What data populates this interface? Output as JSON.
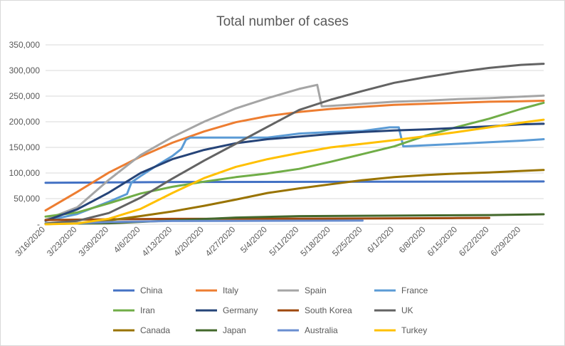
{
  "chart_data": {
    "type": "line",
    "title": "Total number of cases",
    "xlabel": "",
    "ylabel": "",
    "ylim": [
      0,
      350000
    ],
    "y_ticks": [
      "-",
      "50,000",
      "100,000",
      "150,000",
      "200,000",
      "250,000",
      "300,000",
      "350,000"
    ],
    "x_ticks": [
      "3/16/2020",
      "3/23/2020",
      "3/30/2020",
      "4/6/2020",
      "4/13/2020",
      "4/20/2020",
      "4/27/2020",
      "5/4/2020",
      "5/11/2020",
      "5/18/2020",
      "5/25/2020",
      "6/1/2020",
      "6/8/2020",
      "6/15/2020",
      "6/22/2020",
      "6/29/2020"
    ],
    "x_start": "3/16/2020",
    "x_end": "7/4/2020",
    "grid": "horizontal",
    "legend_position": "bottom",
    "series": [
      {
        "name": "China",
        "color": "#4472C4",
        "width": 3,
        "points": [
          [
            "3/16/2020",
            81000
          ],
          [
            "4/17/2020",
            82500
          ],
          [
            "7/4/2020",
            83500
          ]
        ]
      },
      {
        "name": "Italy",
        "color": "#ED7D31",
        "width": 3,
        "points": [
          [
            "3/16/2020",
            27000
          ],
          [
            "3/23/2020",
            63000
          ],
          [
            "3/30/2020",
            101000
          ],
          [
            "4/6/2020",
            132000
          ],
          [
            "4/13/2020",
            159000
          ],
          [
            "4/20/2020",
            181000
          ],
          [
            "4/27/2020",
            199000
          ],
          [
            "5/4/2020",
            211000
          ],
          [
            "5/11/2020",
            219000
          ],
          [
            "5/18/2020",
            225000
          ],
          [
            "5/25/2020",
            229000
          ],
          [
            "6/1/2020",
            233000
          ],
          [
            "6/8/2020",
            235000
          ],
          [
            "6/15/2020",
            237000
          ],
          [
            "6/22/2020",
            239000
          ],
          [
            "6/29/2020",
            240000
          ],
          [
            "7/4/2020",
            241000
          ]
        ]
      },
      {
        "name": "Spain",
        "color": "#A5A5A5",
        "width": 3,
        "points": [
          [
            "3/16/2020",
            9000
          ],
          [
            "3/23/2020",
            33000
          ],
          [
            "3/30/2020",
            87000
          ],
          [
            "4/6/2020",
            135000
          ],
          [
            "4/13/2020",
            170000
          ],
          [
            "4/20/2020",
            200000
          ],
          [
            "4/27/2020",
            226000
          ],
          [
            "5/4/2020",
            246000
          ],
          [
            "5/11/2020",
            264000
          ],
          [
            "5/15/2020",
            272000
          ],
          [
            "5/16/2020",
            230000
          ],
          [
            "5/18/2020",
            231000
          ],
          [
            "5/25/2020",
            235000
          ],
          [
            "6/1/2020",
            239000
          ],
          [
            "6/8/2020",
            241000
          ],
          [
            "6/15/2020",
            244000
          ],
          [
            "6/22/2020",
            246000
          ],
          [
            "6/29/2020",
            249000
          ],
          [
            "7/4/2020",
            251000
          ]
        ]
      },
      {
        "name": "France",
        "color": "#5B9BD5",
        "width": 3,
        "points": [
          [
            "3/16/2020",
            6500
          ],
          [
            "3/23/2020",
            20000
          ],
          [
            "3/30/2020",
            44000
          ],
          [
            "4/3/2020",
            59000
          ],
          [
            "4/4/2020",
            82000
          ],
          [
            "4/6/2020",
            94000
          ],
          [
            "4/10/2020",
            117000
          ],
          [
            "4/13/2020",
            133000
          ],
          [
            "4/15/2020",
            147000
          ],
          [
            "4/16/2020",
            165000
          ],
          [
            "4/17/2020",
            169000
          ],
          [
            "5/4/2020",
            169000
          ],
          [
            "5/11/2020",
            177000
          ],
          [
            "5/18/2020",
            180000
          ],
          [
            "5/25/2020",
            182000
          ],
          [
            "5/31/2020",
            189000
          ],
          [
            "6/2/2020",
            189000
          ],
          [
            "6/3/2020",
            152000
          ],
          [
            "6/8/2020",
            154000
          ],
          [
            "6/15/2020",
            157000
          ],
          [
            "6/22/2020",
            160000
          ],
          [
            "6/29/2020",
            163000
          ],
          [
            "7/4/2020",
            166000
          ]
        ]
      },
      {
        "name": "Iran",
        "color": "#70AD47",
        "width": 3,
        "points": [
          [
            "3/16/2020",
            15000
          ],
          [
            "3/23/2020",
            23000
          ],
          [
            "3/30/2020",
            41000
          ],
          [
            "4/6/2020",
            60000
          ],
          [
            "4/13/2020",
            73000
          ],
          [
            "4/20/2020",
            83000
          ],
          [
            "4/27/2020",
            92000
          ],
          [
            "5/4/2020",
            99000
          ],
          [
            "5/11/2020",
            108000
          ],
          [
            "5/18/2020",
            122000
          ],
          [
            "5/25/2020",
            137000
          ],
          [
            "6/1/2020",
            152000
          ],
          [
            "6/8/2020",
            173000
          ],
          [
            "6/15/2020",
            190000
          ],
          [
            "6/22/2020",
            206000
          ],
          [
            "6/29/2020",
            225000
          ],
          [
            "7/4/2020",
            237000
          ]
        ]
      },
      {
        "name": "Germany",
        "color": "#264478",
        "width": 3,
        "points": [
          [
            "3/16/2020",
            7000
          ],
          [
            "3/23/2020",
            29000
          ],
          [
            "3/30/2020",
            62000
          ],
          [
            "4/6/2020",
            100000
          ],
          [
            "4/13/2020",
            127000
          ],
          [
            "4/20/2020",
            145000
          ],
          [
            "4/27/2020",
            158000
          ],
          [
            "5/4/2020",
            166000
          ],
          [
            "5/11/2020",
            171000
          ],
          [
            "5/18/2020",
            176000
          ],
          [
            "5/25/2020",
            180000
          ],
          [
            "6/1/2020",
            183000
          ],
          [
            "6/8/2020",
            185000
          ],
          [
            "6/15/2020",
            188000
          ],
          [
            "6/22/2020",
            191000
          ],
          [
            "6/29/2020",
            195000
          ],
          [
            "7/4/2020",
            196000
          ]
        ]
      },
      {
        "name": "South Korea",
        "color": "#9E480E",
        "width": 3,
        "points": [
          [
            "3/16/2020",
            8200
          ],
          [
            "3/30/2020",
            9700
          ],
          [
            "4/13/2020",
            10500
          ],
          [
            "5/4/2020",
            10800
          ],
          [
            "5/25/2020",
            11200
          ],
          [
            "6/15/2020",
            12100
          ],
          [
            "6/22/2020",
            12400
          ]
        ]
      },
      {
        "name": "UK",
        "color": "#636363",
        "width": 3,
        "points": [
          [
            "3/16/2020",
            1500
          ],
          [
            "3/23/2020",
            6500
          ],
          [
            "3/30/2020",
            22000
          ],
          [
            "4/6/2020",
            52000
          ],
          [
            "4/13/2020",
            89000
          ],
          [
            "4/20/2020",
            124000
          ],
          [
            "4/27/2020",
            157000
          ],
          [
            "5/4/2020",
            190000
          ],
          [
            "5/11/2020",
            223000
          ],
          [
            "5/18/2020",
            243000
          ],
          [
            "5/25/2020",
            260000
          ],
          [
            "6/1/2020",
            276000
          ],
          [
            "6/8/2020",
            287000
          ],
          [
            "6/15/2020",
            297000
          ],
          [
            "6/22/2020",
            305000
          ],
          [
            "6/29/2020",
            311000
          ],
          [
            "7/4/2020",
            313000
          ]
        ]
      },
      {
        "name": "Canada",
        "color": "#997300",
        "width": 3,
        "points": [
          [
            "3/16/2020",
            400
          ],
          [
            "3/23/2020",
            2000
          ],
          [
            "3/30/2020",
            7500
          ],
          [
            "4/6/2020",
            16000
          ],
          [
            "4/13/2020",
            25000
          ],
          [
            "4/20/2020",
            36000
          ],
          [
            "4/27/2020",
            48000
          ],
          [
            "5/4/2020",
            61000
          ],
          [
            "5/11/2020",
            70000
          ],
          [
            "5/18/2020",
            78000
          ],
          [
            "5/25/2020",
            86000
          ],
          [
            "6/1/2020",
            92000
          ],
          [
            "6/8/2020",
            96000
          ],
          [
            "6/15/2020",
            99000
          ],
          [
            "6/22/2020",
            101000
          ],
          [
            "6/29/2020",
            104000
          ],
          [
            "7/4/2020",
            106000
          ]
        ]
      },
      {
        "name": "Japan",
        "color": "#43682B",
        "width": 3,
        "points": [
          [
            "3/16/2020",
            800
          ],
          [
            "3/30/2020",
            2000
          ],
          [
            "4/13/2020",
            7500
          ],
          [
            "4/27/2020",
            13000
          ],
          [
            "5/11/2020",
            15800
          ],
          [
            "6/1/2020",
            16800
          ],
          [
            "6/22/2020",
            17900
          ],
          [
            "7/4/2020",
            19500
          ]
        ]
      },
      {
        "name": "Australia",
        "color": "#698ED0",
        "width": 3,
        "points": [
          [
            "3/16/2020",
            300
          ],
          [
            "3/23/2020",
            2000
          ],
          [
            "3/30/2020",
            4300
          ],
          [
            "4/13/2020",
            6400
          ],
          [
            "4/27/2020",
            6700
          ],
          [
            "5/25/2020",
            7100
          ]
        ]
      },
      {
        "name": "Turkey",
        "color": "#FFC000",
        "width": 3,
        "points": [
          [
            "3/16/2020",
            50
          ],
          [
            "3/23/2020",
            1500
          ],
          [
            "3/30/2020",
            10800
          ],
          [
            "4/6/2020",
            30000
          ],
          [
            "4/13/2020",
            61000
          ],
          [
            "4/20/2020",
            90000
          ],
          [
            "4/27/2020",
            112000
          ],
          [
            "5/4/2020",
            127000
          ],
          [
            "5/11/2020",
            139000
          ],
          [
            "5/18/2020",
            150000
          ],
          [
            "5/25/2020",
            157000
          ],
          [
            "6/1/2020",
            164000
          ],
          [
            "6/8/2020",
            172000
          ],
          [
            "6/15/2020",
            180000
          ],
          [
            "6/22/2020",
            189000
          ],
          [
            "6/29/2020",
            198000
          ],
          [
            "7/4/2020",
            204000
          ]
        ]
      }
    ]
  }
}
